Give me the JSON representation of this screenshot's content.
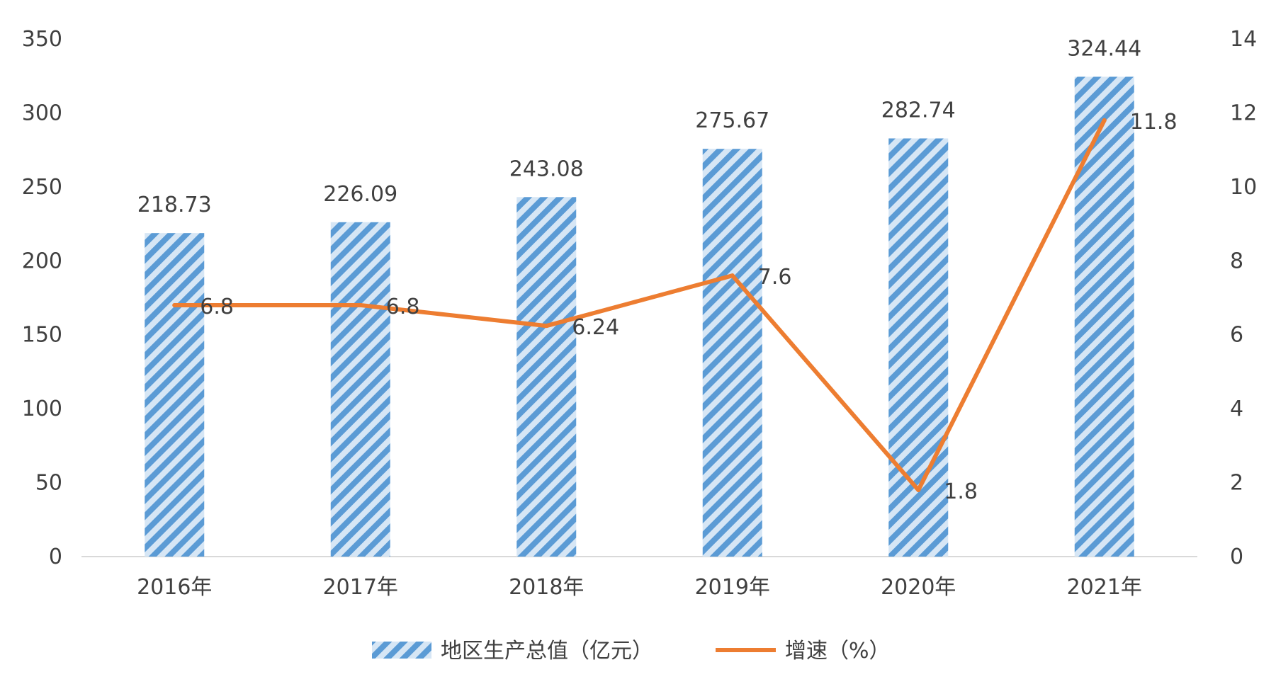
{
  "chart_data": {
    "type": "bar",
    "categories": [
      "2016年",
      "2017年",
      "2018年",
      "2019年",
      "2020年",
      "2021年"
    ],
    "series": [
      {
        "name": "地区生产总值（亿元）",
        "type": "bar",
        "axis": "left",
        "values": [
          218.73,
          226.09,
          243.08,
          275.67,
          282.74,
          324.44
        ],
        "labels": [
          "218.73",
          "226.09",
          "243.08",
          "275.67",
          "282.74",
          "324.44"
        ],
        "color": "#5b9bd5",
        "pattern": "diagonal-stripes"
      },
      {
        "name": "增速（%）",
        "type": "line",
        "axis": "right",
        "values": [
          6.8,
          6.8,
          6.24,
          7.6,
          1.8,
          11.8
        ],
        "labels": [
          "6.8",
          "6.8",
          "6.24",
          "7.6",
          "1.8",
          "11.8"
        ],
        "color": "#ed7d31"
      }
    ],
    "y_left": {
      "min": 0,
      "max": 350,
      "ticks": [
        "0",
        "50",
        "100",
        "150",
        "200",
        "250",
        "300",
        "350"
      ]
    },
    "y_right": {
      "min": 0,
      "max": 14,
      "ticks": [
        "0",
        "2",
        "4",
        "6",
        "8",
        "10",
        "12",
        "14"
      ]
    },
    "title": "",
    "xlabel": "",
    "ylabel": "",
    "grid": false,
    "legend_position": "bottom-center"
  }
}
